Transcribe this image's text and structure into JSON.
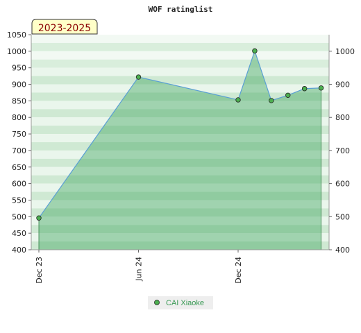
{
  "chart_data": {
    "type": "area",
    "title": "WOF ratinglist",
    "badge": "2023-2025",
    "xlabel": "",
    "ylabel": "",
    "ylim": [
      400,
      1050
    ],
    "yticks_left": [
      400,
      450,
      500,
      550,
      600,
      650,
      700,
      750,
      800,
      850,
      900,
      950,
      1000,
      1050
    ],
    "yticks_right": [
      400,
      500,
      600,
      700,
      800,
      900,
      1000
    ],
    "x_tick_labels": [
      "Dec 23",
      "Jun 24",
      "Dec 24"
    ],
    "series": [
      {
        "name": "CAI Xiaoke",
        "x": [
          "2023-12",
          "2024-06",
          "2024-12",
          "2025-01",
          "2025-02",
          "2025-03",
          "2025-04",
          "2025-05"
        ],
        "values": [
          496,
          922,
          853,
          1001,
          851,
          867,
          887,
          889
        ]
      }
    ],
    "grid": true,
    "legend_position": "bottom-center",
    "colors": {
      "line": "#5a9fd4",
      "fill": "#3aa35a",
      "marker": "#4caf50",
      "badge_bg": "#ffffc8"
    }
  }
}
